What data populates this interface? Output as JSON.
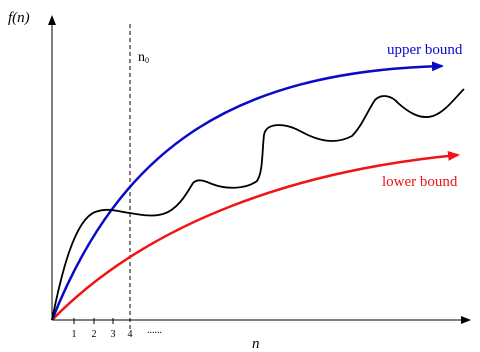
{
  "axes": {
    "y_label": "f(n)",
    "x_label": "n",
    "ticks": [
      "1",
      "2",
      "3",
      "4"
    ],
    "ellipsis": "......"
  },
  "threshold": {
    "label": "n",
    "subscript": "0"
  },
  "curves": {
    "upper": {
      "label": "upper bound",
      "color": "#0a0ac8"
    },
    "lower": {
      "label": "lower bound",
      "color": "#f01414"
    },
    "function": {
      "color": "#000000"
    }
  }
}
